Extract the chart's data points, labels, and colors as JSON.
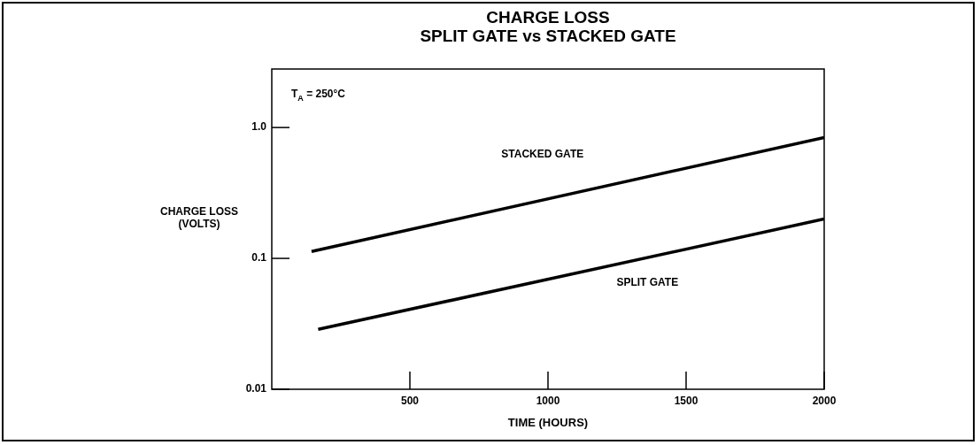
{
  "chart_data": {
    "type": "line",
    "title": "CHARGE LOSS",
    "subtitle": "SPLIT GATE vs STACKED GATE",
    "xlabel": "TIME (HOURS)",
    "ylabel": "CHARGE LOSS\n(VOLTS)",
    "annotations": [
      "T$_{A}$ = 250°C"
    ],
    "log": "y",
    "grid": false,
    "legend": false,
    "marker": "none",
    "line_style": "solid",
    "xlim": [
      0,
      2000
    ],
    "xticks": [
      500,
      1000,
      1500,
      2000
    ],
    "ylim": [
      0.01,
      2.8
    ],
    "yticks": [
      0.01,
      0.1,
      {
        "value": 1,
        "label": "1.0"
      }
    ],
    "series": [
      {
        "name": "STACKED GATE",
        "color": "#000000",
        "x": [
          144,
          2000
        ],
        "values": [
          0.113,
          0.84
        ]
      },
      {
        "name": "SPLIT GATE",
        "color": "#000000",
        "x": [
          168,
          2000
        ],
        "values": [
          0.0287,
          0.2
        ]
      }
    ]
  }
}
